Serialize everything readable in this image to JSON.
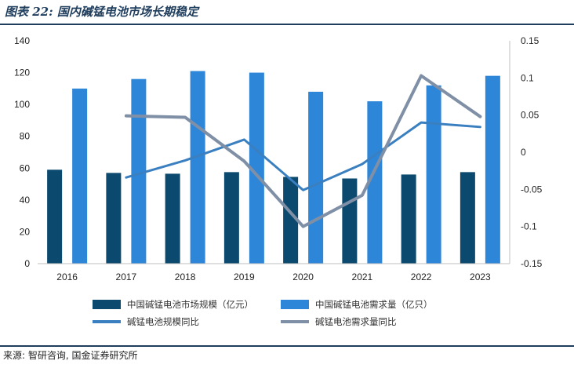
{
  "figure": {
    "title": "图表 22: 国内碱锰电池市场长期稳定",
    "source": "来源: 智研咨询, 国金证券研究所"
  },
  "chart_data": {
    "type": "bar",
    "categories": [
      "2016",
      "2017",
      "2018",
      "2019",
      "2020",
      "2021",
      "2022",
      "2023"
    ],
    "ylim": [
      0,
      140
    ],
    "y_ticks": [
      "0",
      "20",
      "40",
      "60",
      "80",
      "100",
      "120",
      "140"
    ],
    "y2lim": [
      -0.15,
      0.15
    ],
    "y2_ticks": [
      "-0.15",
      "-0.1",
      "-0.05",
      "0",
      "0.05",
      "0.1",
      "0.15"
    ],
    "grid": false,
    "legend_position": "bottom",
    "bar_series": [
      {
        "name": "中国碱锰电池市场规模（亿元）",
        "color": "#0b4a6e",
        "values": [
          59,
          57,
          56.5,
          57.5,
          54.5,
          53.5,
          56,
          57.5
        ]
      },
      {
        "name": "中国碱锰电池需求量（亿只）",
        "color": "#2e86d9",
        "values": [
          110,
          116,
          121,
          120,
          108,
          102,
          112,
          118
        ]
      }
    ],
    "line_series": [
      {
        "name": "碱锰电池规模同比",
        "color": "#3a7fc0",
        "values": [
          null,
          -0.034,
          -0.011,
          0.017,
          -0.051,
          -0.016,
          0.04,
          0.034
        ]
      },
      {
        "name": "碱锰电池需求量同比",
        "color": "#7f8fa6",
        "values": [
          null,
          0.049,
          0.047,
          -0.012,
          -0.1,
          -0.058,
          0.103,
          0.048
        ]
      }
    ]
  }
}
